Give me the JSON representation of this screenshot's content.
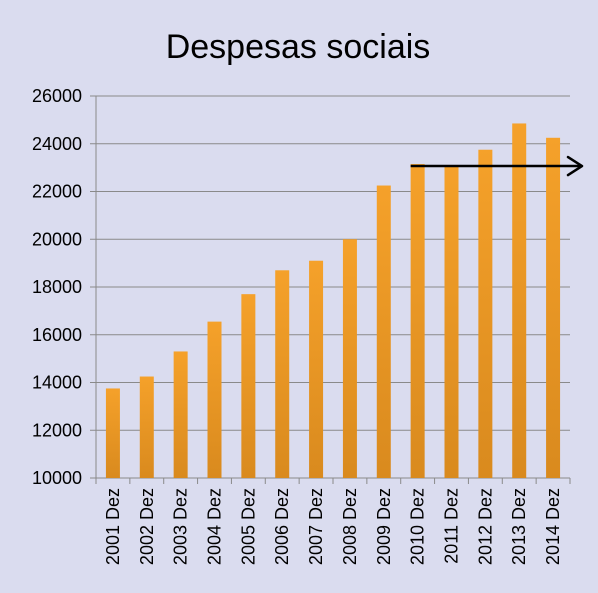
{
  "chart_data": {
    "type": "bar",
    "title": "Despesas sociais",
    "xlabel": "",
    "ylabel": "",
    "categories": [
      "2001 Dez",
      "2002 Dez",
      "2003 Dez",
      "2004 Dez",
      "2005 Dez",
      "2006 Dez",
      "2007 Dez",
      "2008 Dez",
      "2009 Dez",
      "2010 Dez",
      "2011 Dez",
      "2012 Dez",
      "2013 Dez",
      "2014 Dez"
    ],
    "values": [
      13750,
      14250,
      15300,
      16550,
      17700,
      18700,
      19100,
      20000,
      22250,
      23150,
      23100,
      23750,
      24850,
      24250
    ],
    "ylim": [
      10000,
      26000
    ],
    "yticks": [
      10000,
      12000,
      14000,
      16000,
      18000,
      20000,
      22000,
      24000,
      26000
    ],
    "grid": true,
    "legend": "none",
    "bar_color": "#f5a12a",
    "bar_color_dark": "#d98a1e",
    "annotation": {
      "type": "arrow",
      "from_category": "2010 Dez",
      "value": 23150,
      "direction": "right",
      "color": "#000000"
    }
  }
}
